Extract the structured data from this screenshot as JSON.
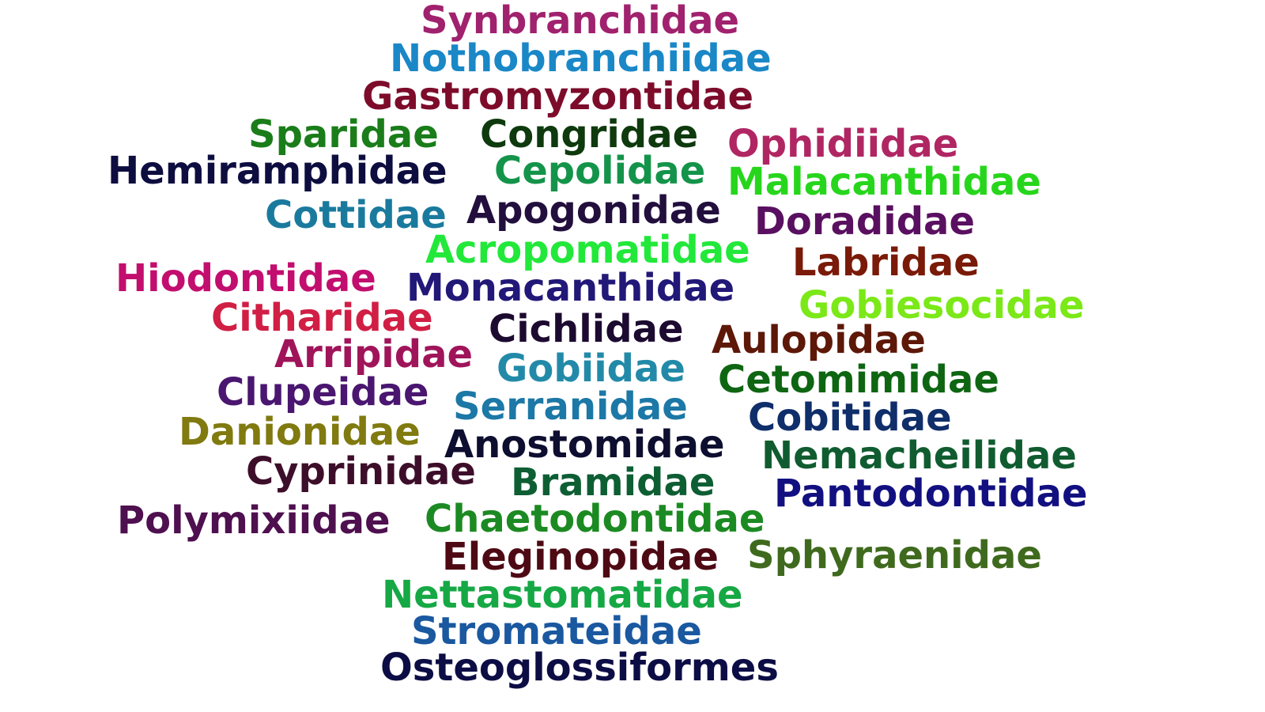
{
  "words": [
    {
      "text": "Synbranchidae",
      "color": "#a0216e"
    },
    {
      "text": "Nothobranchiidae",
      "color": "#1a87c7"
    },
    {
      "text": "Gastromyzontidae",
      "color": "#7d0c2b"
    },
    {
      "text": "Sparidae",
      "color": "#1a7d1a"
    },
    {
      "text": "Congridae",
      "color": "#0e3a0e"
    },
    {
      "text": "Ophidiidae",
      "color": "#b02663"
    },
    {
      "text": "Hemiramphidae",
      "color": "#0d0d40"
    },
    {
      "text": "Cepolidae",
      "color": "#14944a"
    },
    {
      "text": "Malacanthidae",
      "color": "#27d61c"
    },
    {
      "text": "Cottidae",
      "color": "#1a7a9e"
    },
    {
      "text": "Apogonidae",
      "color": "#220f3d"
    },
    {
      "text": "Doradidae",
      "color": "#5a1060"
    },
    {
      "text": "Acropomatidae",
      "color": "#22e83a"
    },
    {
      "text": "Labridae",
      "color": "#7a1a08"
    },
    {
      "text": "Hiodontidae",
      "color": "#c20e6e"
    },
    {
      "text": "Monacanthidae",
      "color": "#221878"
    },
    {
      "text": "Gobiesocidae",
      "color": "#7be818"
    },
    {
      "text": "Citharidae",
      "color": "#d11e44"
    },
    {
      "text": "Cichlidae",
      "color": "#1c0a30"
    },
    {
      "text": "Aulopidae",
      "color": "#5e1808"
    },
    {
      "text": "Arripidae",
      "color": "#a0145a"
    },
    {
      "text": "Gobiidae",
      "color": "#228aa8"
    },
    {
      "text": "Cetomimidae",
      "color": "#0e6612"
    },
    {
      "text": "Clupeidae",
      "color": "#4a1670"
    },
    {
      "text": "Serranidae",
      "color": "#1c78a6"
    },
    {
      "text": "Cobitidae",
      "color": "#0f2e6a"
    },
    {
      "text": "Danionidae",
      "color": "#807a10"
    },
    {
      "text": "Anostomidae",
      "color": "#0e0e30"
    },
    {
      "text": "Nemacheilidae",
      "color": "#105c30"
    },
    {
      "text": "Cyprinidae",
      "color": "#3d0e2a"
    },
    {
      "text": "Bramidae",
      "color": "#0e5e34"
    },
    {
      "text": "Pantodontidae",
      "color": "#121080"
    },
    {
      "text": "Polymixiidae",
      "color": "#4e104e"
    },
    {
      "text": "Chaetodontidae",
      "color": "#1c8a22"
    },
    {
      "text": "Eleginopidae",
      "color": "#4e0a14"
    },
    {
      "text": "Sphyraenidae",
      "color": "#3f6a1e"
    },
    {
      "text": "Nettastomatidae",
      "color": "#16a844"
    },
    {
      "text": "Stromateidae",
      "color": "#1a58a0"
    },
    {
      "text": "Osteoglossiformes",
      "color": "#0d0d45"
    }
  ]
}
